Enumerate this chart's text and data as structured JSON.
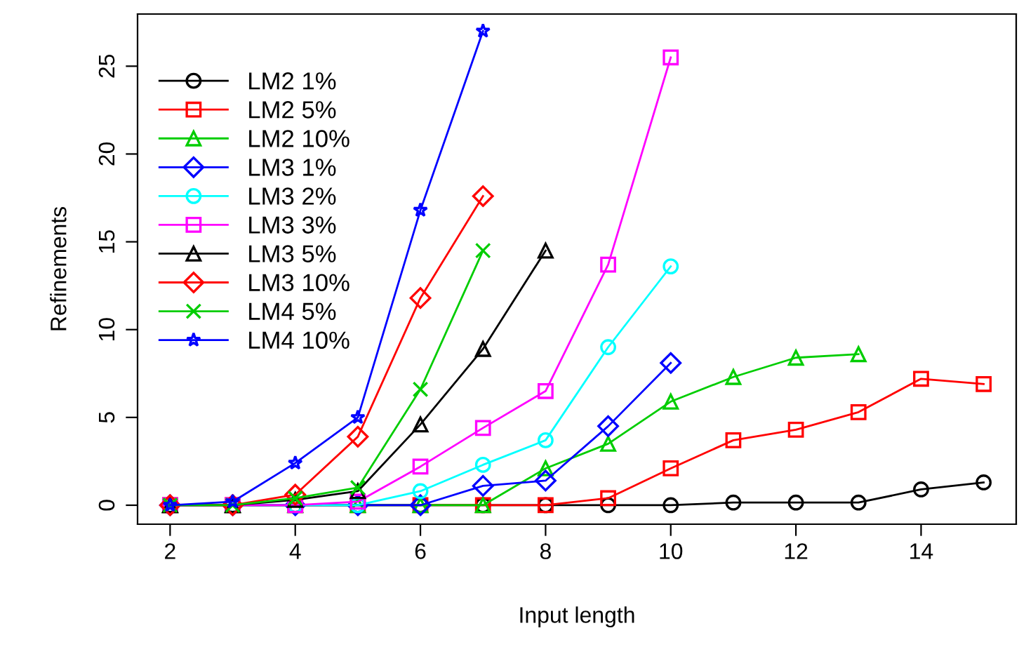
{
  "chart_data": {
    "type": "line",
    "xlabel": "Input length",
    "ylabel": "Refinements",
    "xlim": [
      1.48,
      15.52
    ],
    "ylim": [
      -1.08,
      27.97
    ],
    "xticks": [
      2,
      4,
      6,
      8,
      10,
      12,
      14
    ],
    "yticks": [
      0,
      5,
      10,
      15,
      20,
      25
    ],
    "grid": false,
    "legend": "top left",
    "series": [
      {
        "name": "LM2 1%",
        "color": "#000000",
        "marker": "circle",
        "x": [
          2,
          3,
          4,
          5,
          6,
          7,
          8,
          9,
          10,
          11,
          12,
          13,
          14,
          15
        ],
        "values": [
          0,
          0,
          0,
          0,
          0,
          0,
          0,
          0,
          0,
          0.15,
          0.15,
          0.15,
          0.9,
          1.3
        ]
      },
      {
        "name": "LM2 5%",
        "color": "#ff0000",
        "marker": "square",
        "x": [
          2,
          3,
          4,
          5,
          6,
          7,
          8,
          9,
          10,
          11,
          12,
          13,
          14,
          15
        ],
        "values": [
          0,
          0,
          0,
          0,
          0,
          0,
          0,
          0.4,
          2.1,
          3.7,
          4.3,
          5.3,
          7.2,
          6.9
        ]
      },
      {
        "name": "LM2 10%",
        "color": "#00cd00",
        "marker": "triangle",
        "x": [
          2,
          3,
          4,
          5,
          6,
          7,
          8,
          9,
          10,
          11,
          12,
          13
        ],
        "values": [
          0,
          0,
          0,
          0,
          0,
          0,
          2.1,
          3.5,
          5.9,
          7.3,
          8.4,
          8.6
        ]
      },
      {
        "name": "LM3 1%",
        "color": "#0000ff",
        "marker": "diamond",
        "x": [
          2,
          3,
          4,
          5,
          6,
          7,
          8,
          9,
          10
        ],
        "values": [
          0,
          0,
          0,
          0,
          0,
          1.1,
          1.4,
          4.5,
          8.1
        ]
      },
      {
        "name": "LM3 2%",
        "color": "#00ffff",
        "marker": "circle",
        "x": [
          2,
          3,
          4,
          5,
          6,
          7,
          8,
          9,
          10
        ],
        "values": [
          0,
          0,
          0,
          0,
          0.8,
          2.3,
          3.7,
          9.0,
          13.6
        ]
      },
      {
        "name": "LM3 3%",
        "color": "#ff00ff",
        "marker": "square",
        "x": [
          2,
          3,
          4,
          5,
          6,
          7,
          8,
          9,
          10
        ],
        "values": [
          0,
          0,
          0,
          0.2,
          2.2,
          4.4,
          6.5,
          13.7,
          25.5
        ]
      },
      {
        "name": "LM3 5%",
        "color": "#000000",
        "marker": "triangle",
        "x": [
          2,
          3,
          4,
          5,
          6,
          7,
          8
        ],
        "values": [
          0,
          0,
          0.3,
          0.8,
          4.6,
          8.9,
          14.5
        ]
      },
      {
        "name": "LM3 10%",
        "color": "#ff0000",
        "marker": "diamond",
        "x": [
          2,
          3,
          4,
          5,
          6,
          7
        ],
        "values": [
          0,
          0,
          0.6,
          3.9,
          11.8,
          17.6
        ]
      },
      {
        "name": "LM4 5%",
        "color": "#00cd00",
        "marker": "cross",
        "x": [
          2,
          3,
          4,
          5,
          6,
          7
        ],
        "values": [
          0,
          0,
          0.4,
          1.0,
          6.6,
          14.5
        ]
      },
      {
        "name": "LM4 10%",
        "color": "#0000ff",
        "marker": "star",
        "x": [
          2,
          3,
          4,
          5,
          6,
          7
        ],
        "values": [
          0,
          0.2,
          2.4,
          5.0,
          16.8,
          27.0
        ]
      }
    ]
  }
}
